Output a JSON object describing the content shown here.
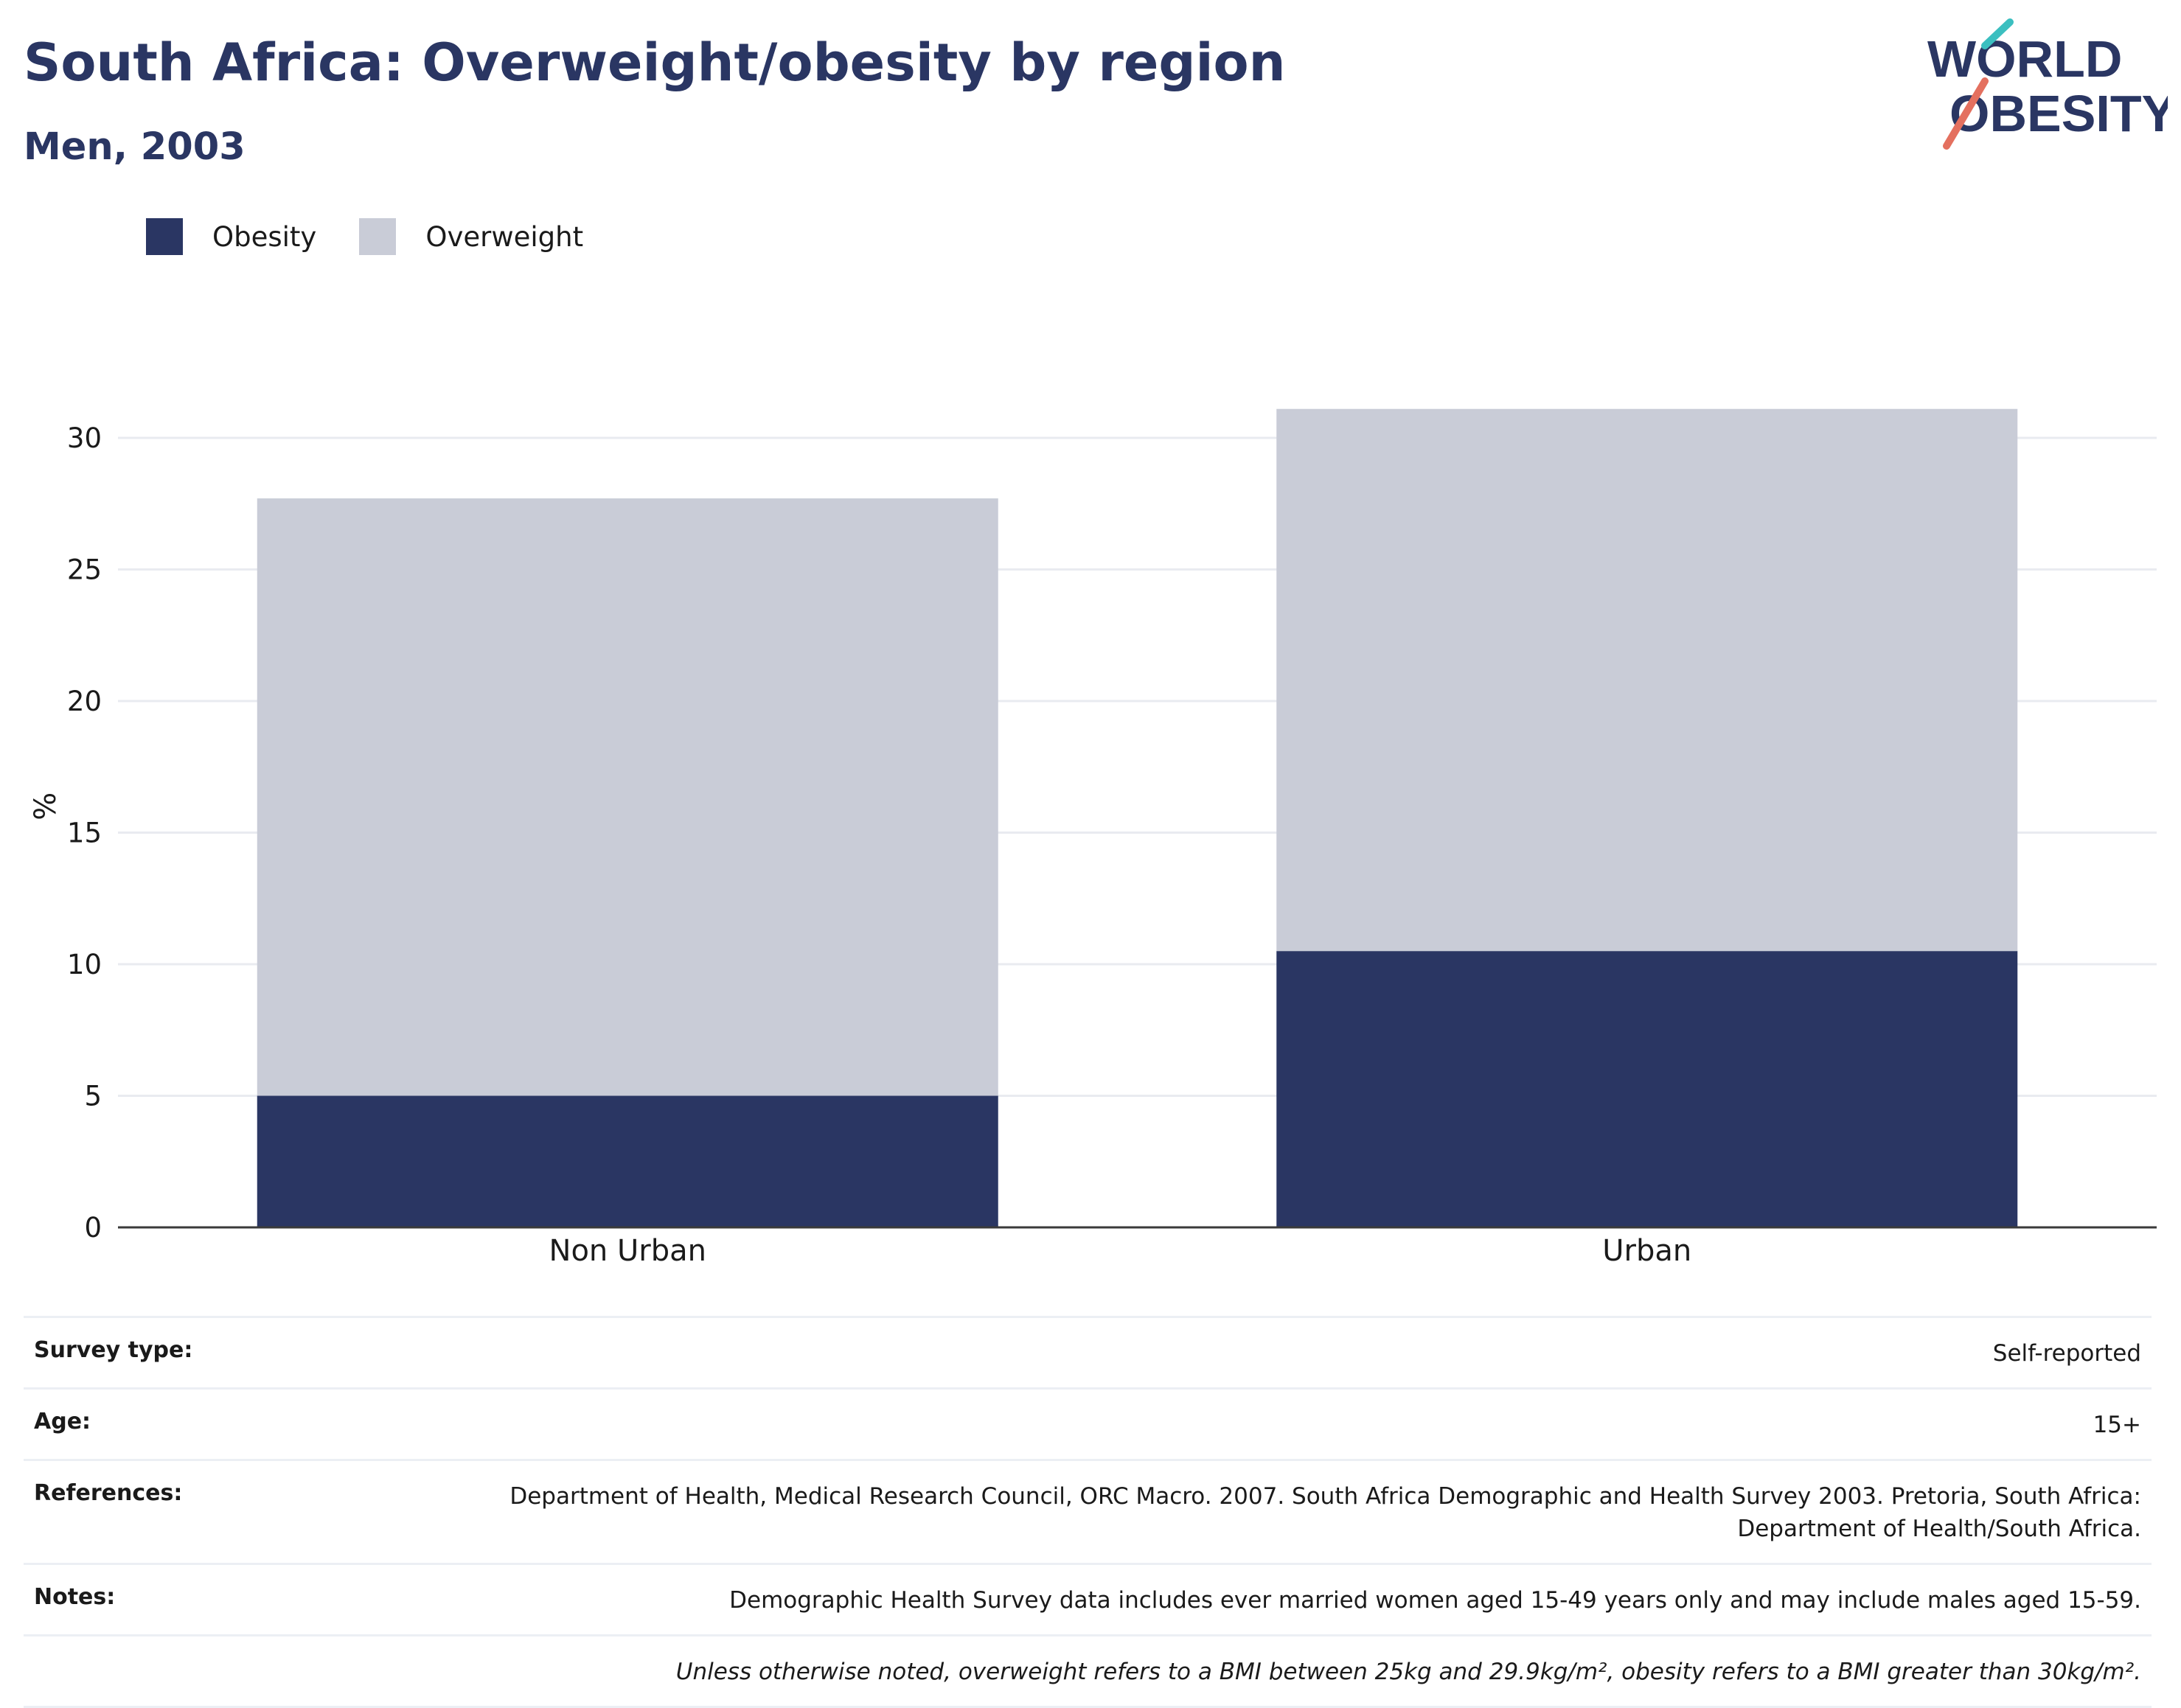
{
  "header": {
    "title": "South Africa: Overweight/obesity by region",
    "subtitle": "Men, 2003"
  },
  "logo": {
    "line1": "WORLD",
    "line2": "OBESITY",
    "icon": "world-obesity-logo"
  },
  "legend": [
    {
      "label": "Obesity",
      "color": "#2a3663"
    },
    {
      "label": "Overweight",
      "color": "#c9ccd7"
    }
  ],
  "chart_data": {
    "type": "bar",
    "stacked": true,
    "categories": [
      "Non Urban",
      "Urban"
    ],
    "series": [
      {
        "name": "Obesity",
        "values": [
          5.0,
          10.5
        ],
        "color": "#2a3663"
      },
      {
        "name": "Overweight",
        "values": [
          22.7,
          20.6
        ],
        "color": "#c9ccd7"
      }
    ],
    "ylabel": "%",
    "ylim": [
      0,
      32
    ],
    "yticks": [
      0,
      5,
      10,
      15,
      20,
      25,
      30
    ],
    "grid": true,
    "legend_position": "top-left"
  },
  "meta": [
    {
      "label": "Survey type:",
      "value": "Self-reported"
    },
    {
      "label": "Age:",
      "value": "15+"
    },
    {
      "label": "References:",
      "value": "Department of Health, Medical Research Council, ORC Macro. 2007. South Africa Demographic and Health Survey 2003. Pretoria, South Africa: Department of Health/South Africa."
    },
    {
      "label": "Notes:",
      "value": "Demographic Health Survey data includes ever married women aged 15-49 years only and may include males aged 15-59."
    },
    {
      "label": "",
      "value": "Unless otherwise noted, overweight refers to a BMI between 25kg and 29.9kg/m², obesity refers to a BMI greater than 30kg/m²."
    }
  ]
}
